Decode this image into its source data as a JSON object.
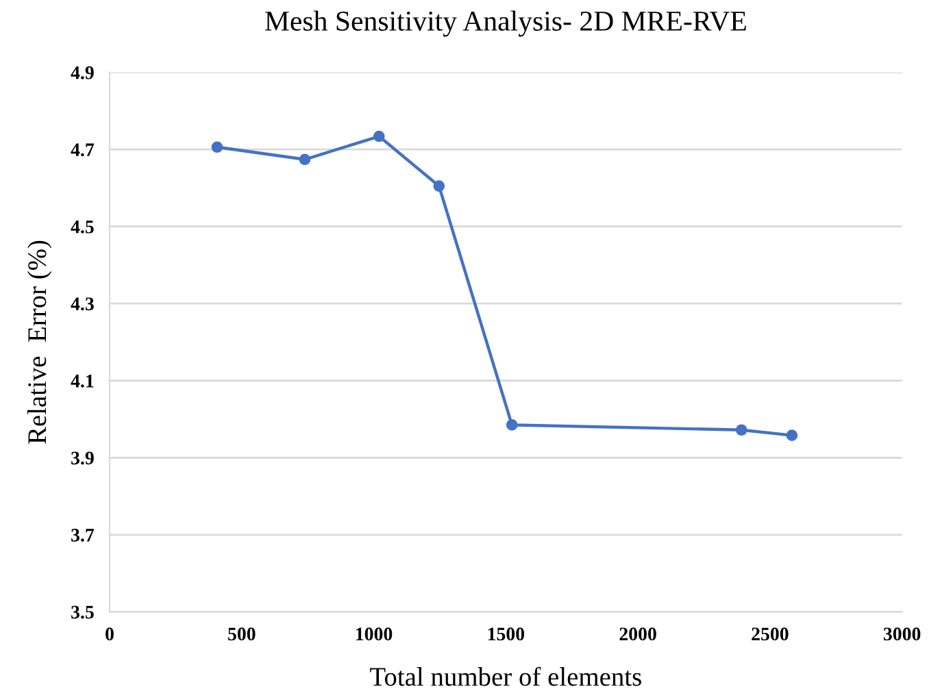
{
  "chart_data": {
    "type": "line",
    "title": "Mesh Sensitivity Analysis- 2D MRE-RVE",
    "xlabel": "Total number of elements",
    "ylabel": "Relative  Error (%)",
    "x": [
      407,
      739,
      1020,
      1247,
      1523,
      2392,
      2583
    ],
    "series": [
      {
        "color": "#4472c4",
        "values": [
          4.706,
          4.674,
          4.734,
          4.605,
          3.985,
          3.972,
          3.958
        ]
      }
    ],
    "xlim": [
      0,
      3000
    ],
    "xticks": [
      0,
      500,
      1000,
      1500,
      2000,
      2500,
      3000
    ],
    "ylim": [
      3.5,
      4.9
    ],
    "yticks": [
      3.5,
      3.7,
      3.9,
      4.1,
      4.3,
      4.5,
      4.7,
      4.9
    ],
    "grid": "y",
    "marker": "circle",
    "line_style": "solid",
    "legend": false
  }
}
